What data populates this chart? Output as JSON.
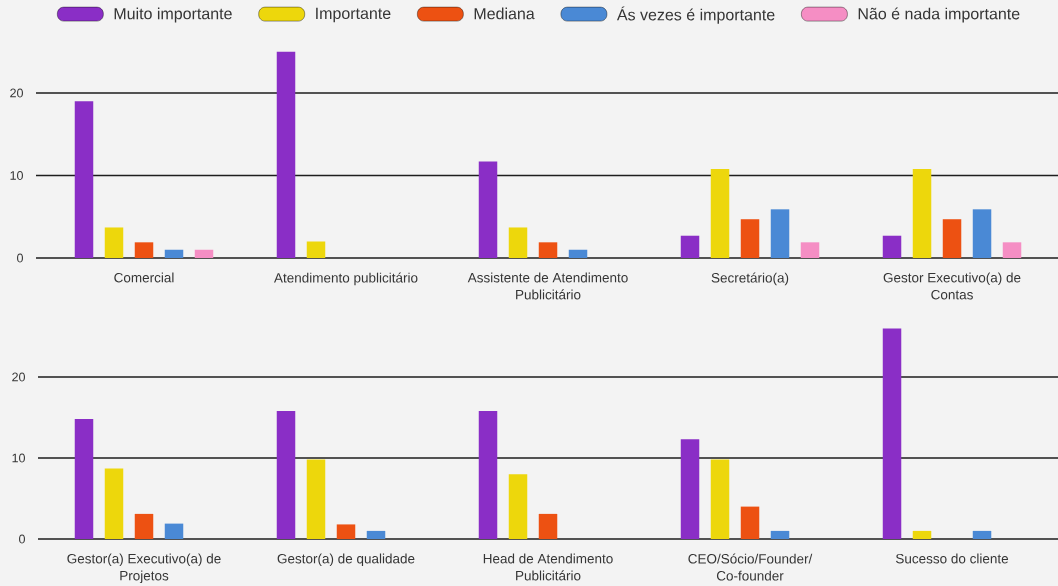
{
  "chart_data": [
    {
      "type": "bar",
      "categories": [
        "Comercial",
        "Atendimento publicitário",
        "Assistente de Atendimento Publicitário",
        "Secretário(a)",
        "Gestor Executivo(a) de Contas"
      ],
      "series": [
        {
          "name": "Muito importante",
          "color": "#8a2ec6",
          "values": [
            19,
            25,
            11.7,
            2.7,
            2.7
          ]
        },
        {
          "name": "Importante",
          "color": "#edd70c",
          "values": [
            3.7,
            2,
            3.7,
            10.8,
            10.8
          ]
        },
        {
          "name": "Mediana",
          "color": "#ed5112",
          "values": [
            1.9,
            null,
            1.9,
            4.7,
            4.7
          ]
        },
        {
          "name": "Ás vezes é importante",
          "color": "#4a89d5",
          "values": [
            1,
            null,
            1,
            5.9,
            5.9
          ]
        },
        {
          "name": "Não é nada importante",
          "color": "#f58ec4",
          "values": [
            1,
            null,
            null,
            1.9,
            1.9
          ]
        }
      ],
      "ylim": [
        0,
        25
      ],
      "yticks": [
        0,
        10,
        20
      ],
      "grid": "y",
      "legend": "top"
    },
    {
      "type": "bar",
      "categories": [
        "Gestor(a) Executivo(a) de Projetos",
        "Gestor(a) de qualidade",
        "Head de Atendimento Publicitário",
        "CEO/Sócio/Founder/Co-founder",
        "Sucesso do cliente"
      ],
      "series": [
        {
          "color": "#8a2ec6",
          "values": [
            14.8,
            15.8,
            15.8,
            12.3,
            26
          ]
        },
        {
          "color": "#edd70c",
          "values": [
            8.7,
            9.8,
            8,
            9.8,
            1
          ]
        },
        {
          "color": "#ed5112",
          "values": [
            3.1,
            1.8,
            3.1,
            4,
            null
          ]
        },
        {
          "color": "#4a89d5",
          "values": [
            1.9,
            1,
            null,
            1,
            1
          ]
        },
        {
          "color": "#f58ec4",
          "values": [
            null,
            null,
            null,
            null,
            null
          ]
        }
      ],
      "ylim": [
        0,
        26
      ],
      "yticks": [
        0,
        10,
        20
      ],
      "grid": "y"
    }
  ]
}
